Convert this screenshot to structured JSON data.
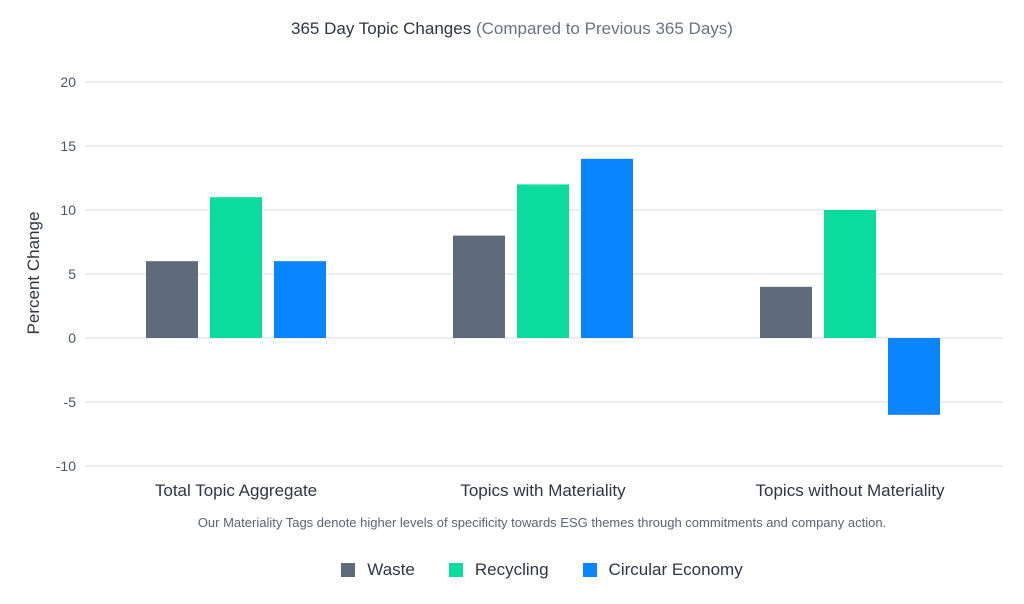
{
  "chart_data": {
    "type": "bar",
    "title": "365 Day Topic Changes",
    "subtitle": "(Compared to Previous 365 Days)",
    "xlabel": "",
    "ylabel": "Percent Change",
    "ylim": [
      -10,
      20
    ],
    "yticks": [
      20,
      15,
      10,
      5,
      0,
      -5,
      -10
    ],
    "ytick_labels": [
      "20",
      "15",
      "10",
      "5",
      "0",
      "-5",
      "-10"
    ],
    "grid": true,
    "categories": [
      "Total Topic Aggregate",
      "Topics with Materiality",
      "Topics without Materiality"
    ],
    "series": [
      {
        "name": "Waste",
        "color": "#5f6b7a",
        "values": [
          6,
          8,
          4
        ]
      },
      {
        "name": "Recycling",
        "color": "#0bdb9c",
        "values": [
          11,
          12,
          10
        ]
      },
      {
        "name": "Circular Economy",
        "color": "#0a84ff",
        "values": [
          6,
          14,
          -6
        ]
      }
    ],
    "caption": "Our Materiality Tags denote higher levels of specificity towards ESG themes through commitments and company action.",
    "legend_position": "bottom-center"
  }
}
